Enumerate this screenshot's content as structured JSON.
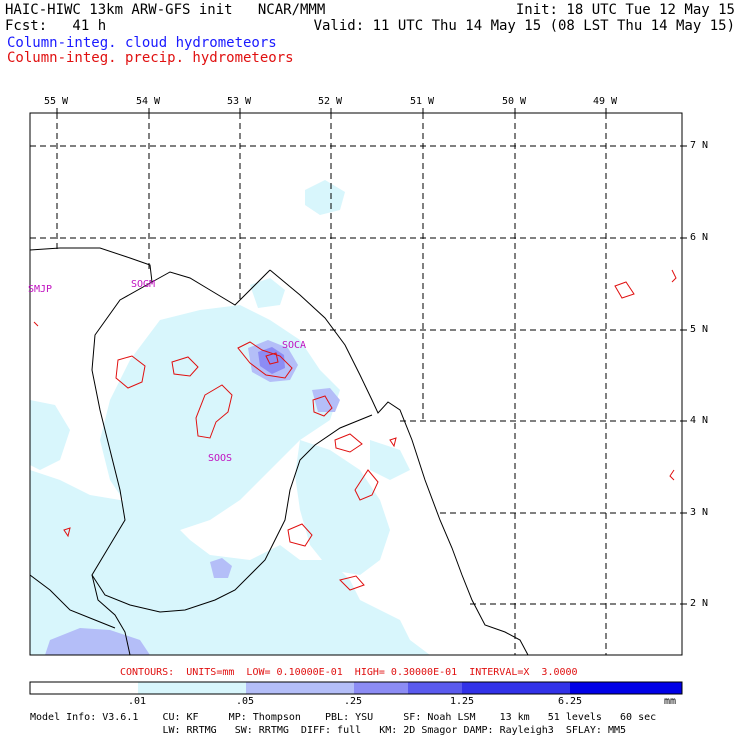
{
  "header": {
    "model_title": "HAIC-HIWC 13km ARW-GFS init   NCAR/MMM",
    "forecast_label": "Fcst:   41 h",
    "init_line": "Init: 18 UTC Tue 12 May 15",
    "valid_line": "Valid: 11 UTC Thu 14 May 15 (08 LST Thu 14 May 15)",
    "field_cloud": "Column-integ. cloud hydrometeors",
    "field_precip": "Column-integ. precip. hydrometeors"
  },
  "map": {
    "lon_labels": [
      "55 W",
      "54 W",
      "53 W",
      "52 W",
      "51 W",
      "50 W",
      "49 W"
    ],
    "lat_labels": [
      "7 N",
      "6 N",
      "5 N",
      "4 N",
      "3 N",
      "2 N"
    ],
    "stations": [
      "SMJP",
      "SOGM",
      "SOCA",
      "SOOS"
    ]
  },
  "contours_line": "CONTOURS:  UNITS=mm  LOW= 0.10000E-01  HIGH= 0.30000E-01  INTERVAL=X  3.0000",
  "colorbar": {
    "labels": [
      ".01",
      ".05",
      ".25",
      "1.25",
      "6.25"
    ],
    "units": "mm",
    "colors": [
      "#ffffff",
      "#d8f6fc",
      "#b4bef8",
      "#8c8cf4",
      "#5a5aee",
      "#3232e8",
      "#0000e6"
    ]
  },
  "model_info": {
    "line1": "Model Info: V3.6.1    CU: KF     MP: Thompson    PBL: YSU     SF: Noah LSM    13 km   51 levels   60 sec",
    "line2": "                      LW: RRTMG   SW: RRTMG  DIFF: full   KM: 2D Smagor DAMP: Rayleigh3  SFLAY: MM5"
  },
  "colors": {
    "contour": "#e01010",
    "station_label": "#c010c0",
    "title_blue": "#1a1aff",
    "title_red": "#e01010"
  }
}
